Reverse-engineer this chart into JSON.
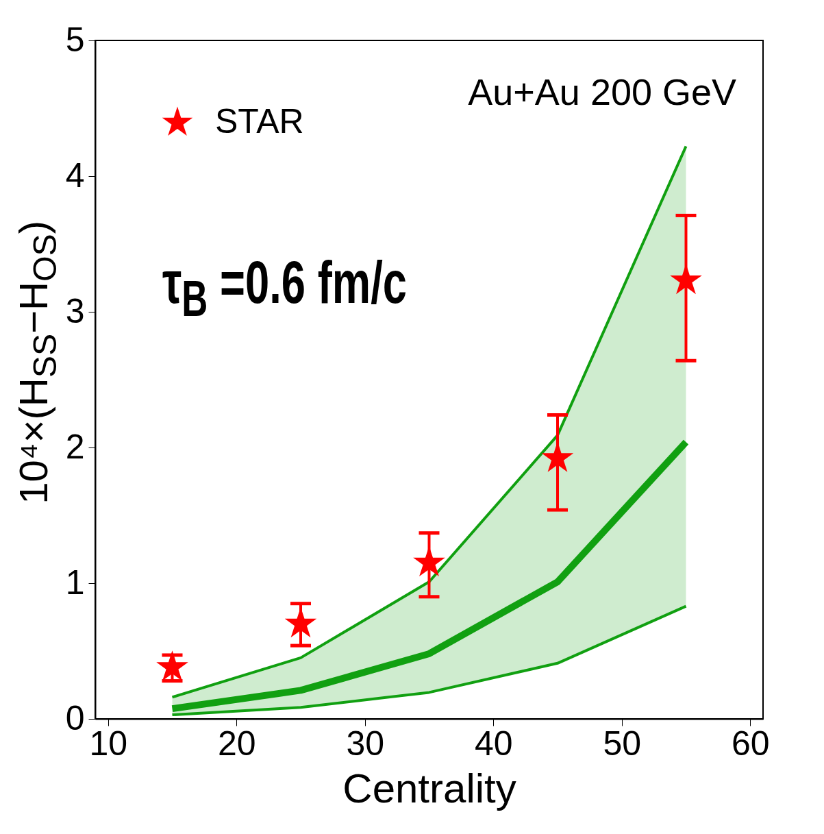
{
  "chart_data": {
    "type": "scatter",
    "xlabel": "Centrality",
    "ylabel": "10⁴×(H$_{SS}$−H$_{OS}$)",
    "annotations": [
      "Au+Au  200 GeV",
      "τ$_{B}$ =0.6 fm/c"
    ],
    "xlim": [
      9,
      61
    ],
    "xticks": [
      10,
      20,
      30,
      40,
      50,
      60
    ],
    "ylim": [
      0,
      5
    ],
    "yticks": [
      0,
      1,
      2,
      3,
      4,
      5
    ],
    "legend": "top left",
    "series": [
      {
        "type": "line",
        "color": "#11a011",
        "x": [
          15,
          25,
          35,
          45,
          55
        ],
        "values": [
          0.16,
          0.45,
          1.01,
          2.09,
          4.22
        ]
      },
      {
        "type": "line",
        "color": "#11a011",
        "x": [
          15,
          25,
          35,
          45,
          55
        ],
        "values": [
          0.075,
          0.21,
          0.48,
          1.01,
          2.04
        ],
        "lower": [
          0.03,
          0.085,
          0.195,
          0.41,
          0.83
        ],
        "upper": [
          0.16,
          0.45,
          1.01,
          2.09,
          4.22
        ]
      },
      {
        "type": "line",
        "color": "#11a011",
        "x": [
          15,
          25,
          35,
          45,
          55
        ],
        "values": [
          0.03,
          0.085,
          0.195,
          0.41,
          0.83
        ]
      },
      {
        "name": "STAR",
        "color": "#ff0000",
        "marker": "star",
        "x": [
          15,
          25,
          35,
          45,
          55
        ],
        "values": [
          0.38,
          0.7,
          1.15,
          1.92,
          3.23
        ],
        "errors": [
          [
            0.28,
            0.47
          ],
          [
            0.54,
            0.85
          ],
          [
            0.9,
            1.37
          ],
          [
            1.54,
            2.24
          ],
          [
            2.64,
            3.71
          ]
        ]
      }
    ]
  }
}
